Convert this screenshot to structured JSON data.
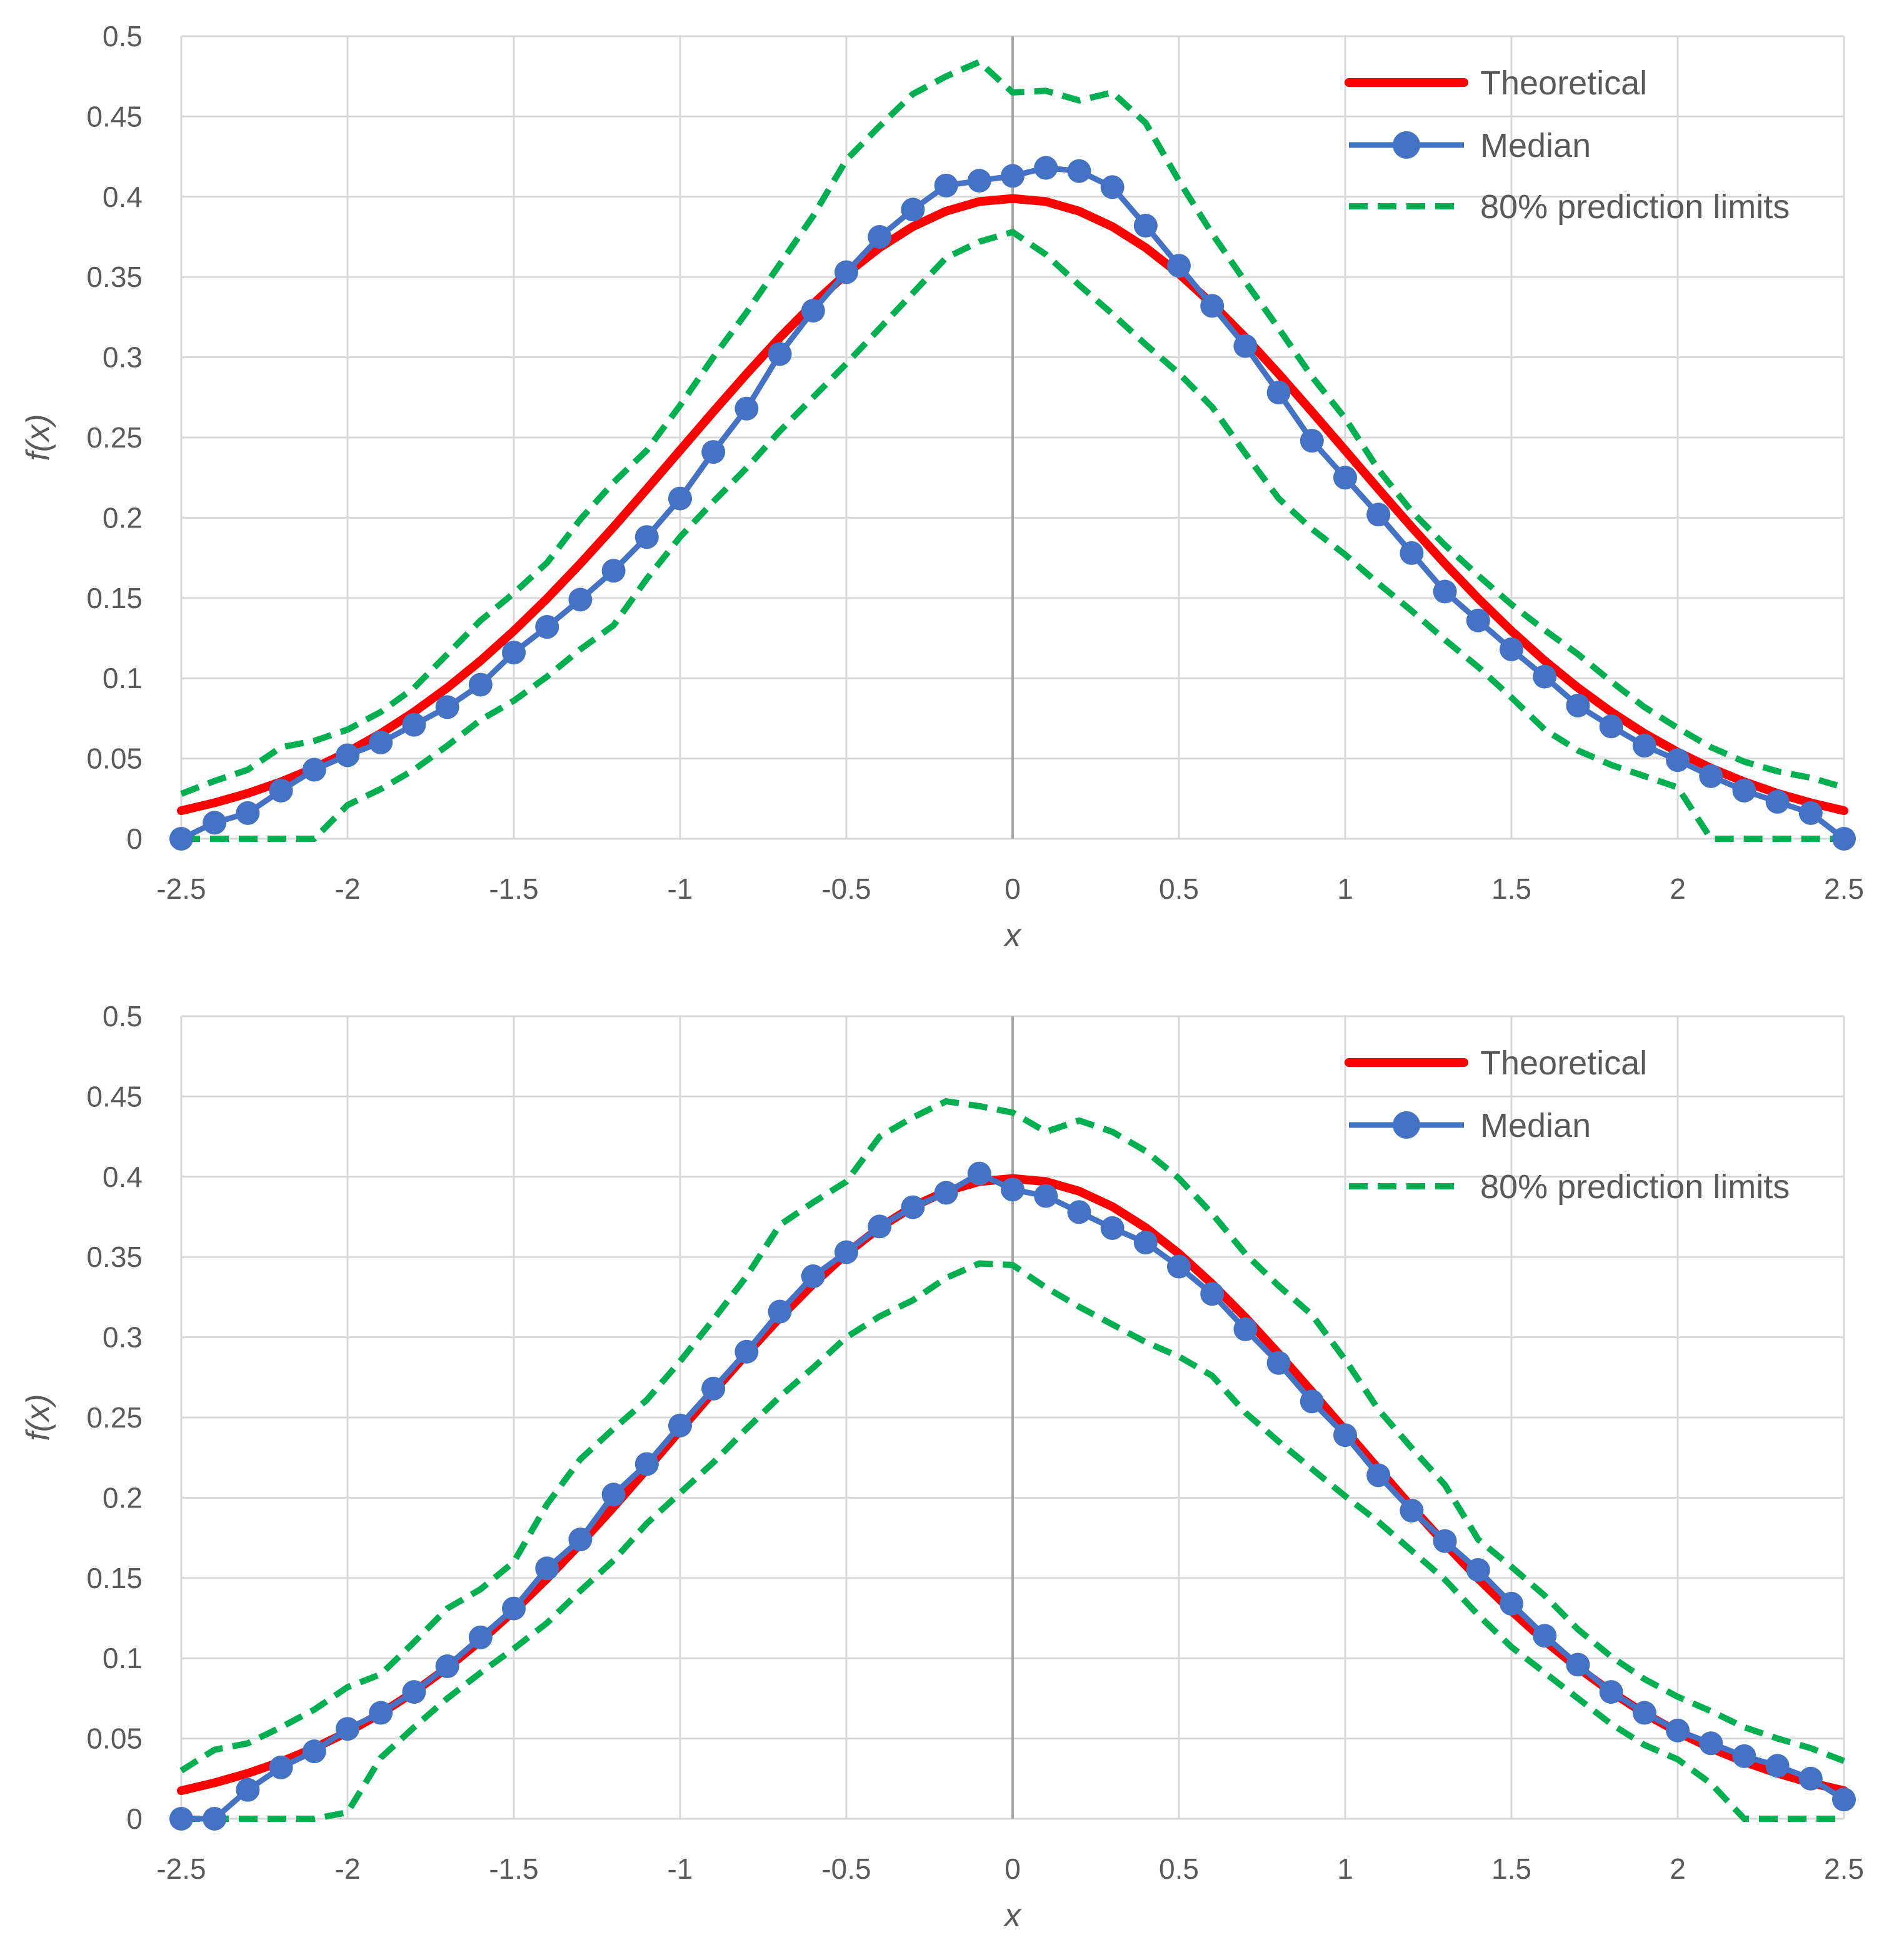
{
  "colors": {
    "theoretical": "#ff0000",
    "median": "#4472c4",
    "limits": "#00b050",
    "grid": "#d9d9d9",
    "text": "#595959"
  },
  "chart_data": [
    {
      "type": "line",
      "panel": "top",
      "xlabel": "x",
      "ylabel": "f(x)",
      "xlim": [
        -2.5,
        2.5
      ],
      "ylim": [
        0,
        0.5
      ],
      "x_ticks": [
        "-2.5",
        "-2",
        "-1.5",
        "-1",
        "-0.5",
        "0",
        "0.5",
        "1",
        "1.5",
        "2",
        "2.5"
      ],
      "y_ticks": [
        "0",
        "0.05",
        "0.1",
        "0.15",
        "0.2",
        "0.25",
        "0.3",
        "0.35",
        "0.4",
        "0.45",
        "0.5"
      ],
      "legend": [
        "Theoretical",
        "Median",
        "80% prediction limits"
      ],
      "legend_position": "top-right",
      "x": [
        -2.5,
        -2.4,
        -2.3,
        -2.2,
        -2.1,
        -2.0,
        -1.9,
        -1.8,
        -1.7,
        -1.6,
        -1.5,
        -1.4,
        -1.3,
        -1.2,
        -1.1,
        -1.0,
        -0.9,
        -0.8,
        -0.7,
        -0.6,
        -0.5,
        -0.4,
        -0.3,
        -0.2,
        -0.1,
        0.0,
        0.1,
        0.2,
        0.3,
        0.4,
        0.5,
        0.6,
        0.7,
        0.8,
        0.9,
        1.0,
        1.1,
        1.2,
        1.3,
        1.4,
        1.5,
        1.6,
        1.7,
        1.8,
        1.9,
        2.0,
        2.1,
        2.2,
        2.3,
        2.4,
        2.5
      ],
      "series": [
        {
          "name": "Theoretical",
          "style": "theoretical",
          "values": [
            0.0175,
            0.0224,
            0.0283,
            0.0355,
            0.044,
            0.054,
            0.0656,
            0.079,
            0.0941,
            0.1109,
            0.1295,
            0.1497,
            0.1714,
            0.1942,
            0.2179,
            0.242,
            0.2661,
            0.2897,
            0.3123,
            0.3332,
            0.3521,
            0.3683,
            0.3814,
            0.391,
            0.397,
            0.3989,
            0.397,
            0.391,
            0.3814,
            0.3683,
            0.3521,
            0.3332,
            0.3123,
            0.2897,
            0.2661,
            0.242,
            0.2179,
            0.1942,
            0.1714,
            0.1497,
            0.1295,
            0.1109,
            0.0941,
            0.079,
            0.0656,
            0.054,
            0.044,
            0.0355,
            0.0283,
            0.0224,
            0.0175
          ]
        },
        {
          "name": "Median",
          "style": "median",
          "values": [
            0.0,
            0.01,
            0.016,
            0.03,
            0.043,
            0.052,
            0.06,
            0.071,
            0.082,
            0.096,
            0.116,
            0.132,
            0.149,
            0.167,
            0.188,
            0.212,
            0.241,
            0.268,
            0.302,
            0.329,
            0.353,
            0.375,
            0.392,
            0.407,
            0.41,
            0.413,
            0.418,
            0.416,
            0.406,
            0.382,
            0.357,
            0.332,
            0.307,
            0.278,
            0.248,
            0.225,
            0.202,
            0.178,
            0.154,
            0.136,
            0.118,
            0.101,
            0.083,
            0.07,
            0.058,
            0.049,
            0.039,
            0.03,
            0.023,
            0.016,
            0.0
          ]
        },
        {
          "name": "80% prediction limits (upper)",
          "style": "limits",
          "values": [
            0.028,
            0.036,
            0.043,
            0.057,
            0.061,
            0.068,
            0.079,
            0.094,
            0.115,
            0.136,
            0.153,
            0.172,
            0.199,
            0.222,
            0.242,
            0.27,
            0.3,
            0.328,
            0.358,
            0.388,
            0.423,
            0.444,
            0.464,
            0.475,
            0.484,
            0.465,
            0.466,
            0.46,
            0.465,
            0.446,
            0.41,
            0.377,
            0.347,
            0.318,
            0.288,
            0.262,
            0.23,
            0.204,
            0.183,
            0.164,
            0.146,
            0.13,
            0.115,
            0.098,
            0.082,
            0.069,
            0.057,
            0.048,
            0.042,
            0.038,
            0.032
          ]
        },
        {
          "name": "80% prediction limits (lower)",
          "style": "limits",
          "values": [
            0.0,
            0.0,
            0.0,
            0.0,
            0.0,
            0.021,
            0.031,
            0.043,
            0.058,
            0.074,
            0.086,
            0.101,
            0.118,
            0.133,
            0.162,
            0.188,
            0.21,
            0.231,
            0.254,
            0.275,
            0.296,
            0.318,
            0.34,
            0.362,
            0.372,
            0.378,
            0.364,
            0.345,
            0.327,
            0.308,
            0.29,
            0.269,
            0.24,
            0.212,
            0.193,
            0.177,
            0.159,
            0.142,
            0.124,
            0.107,
            0.088,
            0.068,
            0.055,
            0.046,
            0.039,
            0.032,
            0.0,
            0.0,
            0.0,
            0.0,
            0.0
          ]
        }
      ]
    },
    {
      "type": "line",
      "panel": "bottom",
      "xlabel": "x",
      "ylabel": "f(x)",
      "xlim": [
        -2.5,
        2.5
      ],
      "ylim": [
        0,
        0.5
      ],
      "x_ticks": [
        "-2.5",
        "-2",
        "-1.5",
        "-1",
        "-0.5",
        "0",
        "0.5",
        "1",
        "1.5",
        "2",
        "2.5"
      ],
      "y_ticks": [
        "0",
        "0.05",
        "0.1",
        "0.15",
        "0.2",
        "0.25",
        "0.3",
        "0.35",
        "0.4",
        "0.45",
        "0.5"
      ],
      "legend": [
        "Theoretical",
        "Median",
        "80% prediction limits"
      ],
      "legend_position": "top-right",
      "x": [
        -2.5,
        -2.4,
        -2.3,
        -2.2,
        -2.1,
        -2.0,
        -1.9,
        -1.8,
        -1.7,
        -1.6,
        -1.5,
        -1.4,
        -1.3,
        -1.2,
        -1.1,
        -1.0,
        -0.9,
        -0.8,
        -0.7,
        -0.6,
        -0.5,
        -0.4,
        -0.3,
        -0.2,
        -0.1,
        0.0,
        0.1,
        0.2,
        0.3,
        0.4,
        0.5,
        0.6,
        0.7,
        0.8,
        0.9,
        1.0,
        1.1,
        1.2,
        1.3,
        1.4,
        1.5,
        1.6,
        1.7,
        1.8,
        1.9,
        2.0,
        2.1,
        2.2,
        2.3,
        2.4,
        2.5
      ],
      "series": [
        {
          "name": "Theoretical",
          "style": "theoretical",
          "values": [
            0.0175,
            0.0224,
            0.0283,
            0.0355,
            0.044,
            0.054,
            0.0656,
            0.079,
            0.0941,
            0.1109,
            0.1295,
            0.1497,
            0.1714,
            0.1942,
            0.2179,
            0.242,
            0.2661,
            0.2897,
            0.3123,
            0.3332,
            0.3521,
            0.3683,
            0.3814,
            0.391,
            0.397,
            0.3989,
            0.397,
            0.391,
            0.3814,
            0.3683,
            0.3521,
            0.3332,
            0.3123,
            0.2897,
            0.2661,
            0.242,
            0.2179,
            0.1942,
            0.1714,
            0.1497,
            0.1295,
            0.1109,
            0.0941,
            0.079,
            0.0656,
            0.054,
            0.044,
            0.0355,
            0.0283,
            0.0224,
            0.0175
          ]
        },
        {
          "name": "Median",
          "style": "median",
          "values": [
            0.0,
            0.0,
            0.018,
            0.032,
            0.042,
            0.056,
            0.066,
            0.079,
            0.095,
            0.113,
            0.131,
            0.156,
            0.174,
            0.202,
            0.221,
            0.245,
            0.268,
            0.291,
            0.316,
            0.338,
            0.353,
            0.369,
            0.381,
            0.39,
            0.402,
            0.392,
            0.388,
            0.378,
            0.368,
            0.359,
            0.344,
            0.327,
            0.305,
            0.284,
            0.26,
            0.239,
            0.214,
            0.192,
            0.173,
            0.155,
            0.134,
            0.114,
            0.096,
            0.079,
            0.066,
            0.055,
            0.047,
            0.039,
            0.033,
            0.025,
            0.012
          ]
        },
        {
          "name": "80% prediction limits (upper)",
          "style": "limits",
          "values": [
            0.03,
            0.043,
            0.047,
            0.057,
            0.068,
            0.082,
            0.09,
            0.11,
            0.131,
            0.143,
            0.16,
            0.196,
            0.224,
            0.243,
            0.261,
            0.285,
            0.311,
            0.338,
            0.37,
            0.384,
            0.397,
            0.425,
            0.437,
            0.447,
            0.444,
            0.44,
            0.428,
            0.435,
            0.428,
            0.416,
            0.399,
            0.377,
            0.352,
            0.332,
            0.314,
            0.286,
            0.255,
            0.231,
            0.208,
            0.174,
            0.157,
            0.139,
            0.118,
            0.101,
            0.087,
            0.076,
            0.067,
            0.057,
            0.05,
            0.044,
            0.036
          ]
        },
        {
          "name": "80% prediction limits (lower)",
          "style": "limits",
          "values": [
            0.0,
            0.0,
            0.0,
            0.0,
            0.0,
            0.004,
            0.038,
            0.057,
            0.075,
            0.091,
            0.106,
            0.122,
            0.142,
            0.161,
            0.184,
            0.203,
            0.222,
            0.243,
            0.263,
            0.281,
            0.3,
            0.313,
            0.323,
            0.337,
            0.346,
            0.345,
            0.331,
            0.319,
            0.308,
            0.297,
            0.288,
            0.276,
            0.253,
            0.235,
            0.218,
            0.201,
            0.185,
            0.167,
            0.149,
            0.127,
            0.107,
            0.091,
            0.075,
            0.059,
            0.046,
            0.037,
            0.022,
            0.0,
            0.0,
            0.0,
            0.0
          ]
        }
      ]
    }
  ]
}
